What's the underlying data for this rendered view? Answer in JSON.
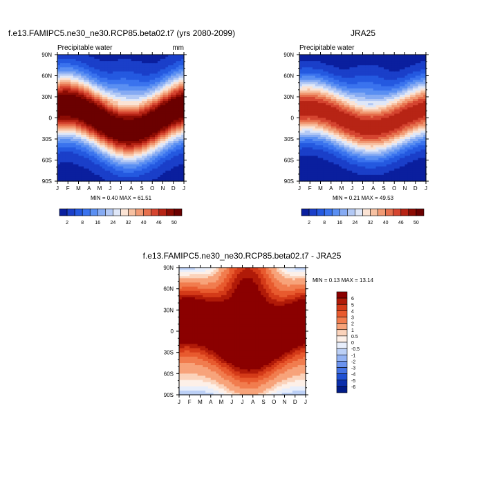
{
  "chart_data": [
    {
      "type": "heatmap",
      "id": "model",
      "title": "f.e13.FAMIPC5.ne30_ne30.RCP85.beta02.t7 (yrs 2080-2099)",
      "subtitle_left": "Precipitable water",
      "subtitle_right": "mm",
      "x_ticks": [
        "J",
        "F",
        "M",
        "A",
        "M",
        "J",
        "J",
        "A",
        "S",
        "O",
        "N",
        "D",
        "J"
      ],
      "y_ticks": [
        "90N",
        "60N",
        "30N",
        "0",
        "30S",
        "60S",
        "90S"
      ],
      "ylim": [
        -90,
        90
      ],
      "stats": "MIN =   0.40 MAX =  61.51",
      "field": {
        "eq_peak": 58,
        "pole_min": 2,
        "shift_amp": 18,
        "width": 30
      }
    },
    {
      "type": "heatmap",
      "id": "obs",
      "title": "JRA25",
      "subtitle_left": "Precipitable water",
      "subtitle_right": "",
      "x_ticks": [
        "J",
        "F",
        "M",
        "A",
        "M",
        "J",
        "J",
        "A",
        "S",
        "O",
        "N",
        "D",
        "J"
      ],
      "y_ticks": [
        "90N",
        "60N",
        "30N",
        "0",
        "30S",
        "60S",
        "90S"
      ],
      "ylim": [
        -90,
        90
      ],
      "stats": "MIN =   0.21 MAX =  49.53",
      "field": {
        "eq_peak": 47,
        "pole_min": 1,
        "shift_amp": 14,
        "width": 28
      }
    },
    {
      "type": "heatmap",
      "id": "diff",
      "title": "f.e13.FAMIPC5.ne30_ne30.RCP85.beta02.t7 - JRA25",
      "x_ticks": [
        "J",
        "F",
        "M",
        "A",
        "M",
        "J",
        "J",
        "A",
        "S",
        "O",
        "N",
        "D",
        "J"
      ],
      "y_ticks": [
        "90N",
        "60N",
        "30N",
        "0",
        "30S",
        "60S",
        "90S"
      ],
      "ylim": [
        -90,
        90
      ],
      "stats": "MIN =   0.13 MAX =  13.14"
    }
  ],
  "colorbars": {
    "abs": {
      "levels": [
        "2",
        "8",
        "16",
        "24",
        "32",
        "40",
        "46",
        "50"
      ],
      "colors": [
        "#0a1f9e",
        "#1a3fc9",
        "#2459e0",
        "#3a73ee",
        "#5a8ff2",
        "#86abf3",
        "#b3c9f5",
        "#dfe7f8",
        "#fbe3d4",
        "#f7c1a2",
        "#f19a74",
        "#e6704d",
        "#d54530",
        "#b72415",
        "#8c0c04",
        "#6b0000"
      ]
    },
    "diff": {
      "levels": [
        "6",
        "5",
        "4",
        "3",
        "2",
        "1",
        "0.5",
        "0",
        "-0.5",
        "-1",
        "-2",
        "-3",
        "-4",
        "-5",
        "-6"
      ],
      "colors": [
        "#8b0000",
        "#b01a08",
        "#d43a18",
        "#e85a2e",
        "#f17c4e",
        "#f7a37a",
        "#fbd3bb",
        "#fdf0e8",
        "#e8eefb",
        "#bcd0f6",
        "#94b3f3",
        "#6b93ee",
        "#4472e4",
        "#2050d2",
        "#0a2eab",
        "#001b87"
      ]
    }
  }
}
